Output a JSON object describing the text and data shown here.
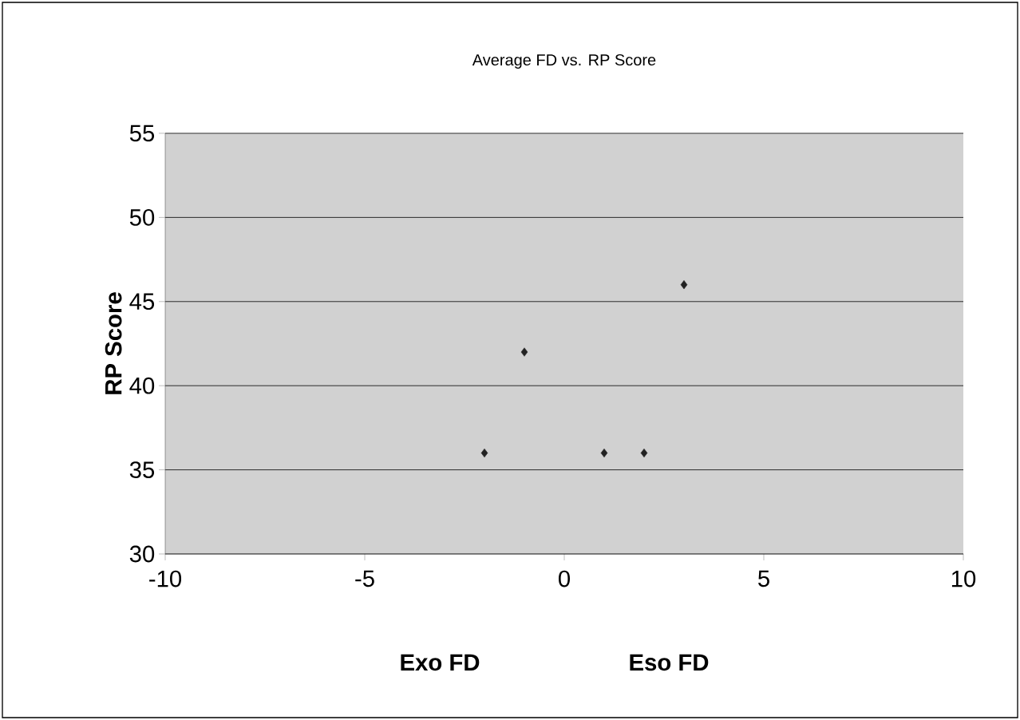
{
  "chart_data": {
    "type": "scatter",
    "title": "Average FD vs. RP Score",
    "xlabel": "Exo FD",
    "ylabel": "RP Score",
    "annotations": [
      "Eso FD"
    ],
    "series": [
      {
        "color": "#222222",
        "x": [
          -2,
          -1,
          1,
          2,
          3
        ],
        "values": [
          36,
          42,
          36,
          36,
          46
        ]
      }
    ],
    "xlim": [
      -10,
      10
    ],
    "xticks": [
      -10,
      -5,
      0,
      5,
      10
    ],
    "ylim": [
      30,
      55
    ],
    "yticks": [
      30,
      35,
      40,
      45,
      50,
      55
    ],
    "grid": "y",
    "marker": "diamond"
  }
}
